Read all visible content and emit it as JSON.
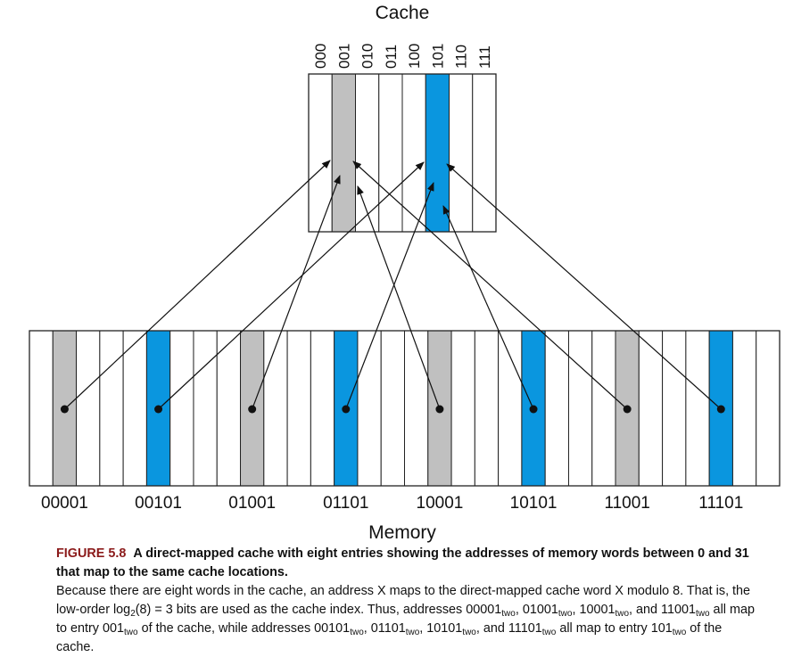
{
  "colors": {
    "gray": "#c0c0c0",
    "blue": "#0a96df",
    "line": "#111111",
    "border": "#222222"
  },
  "cache": {
    "title": "Cache",
    "indices": [
      "000",
      "001",
      "010",
      "011",
      "100",
      "101",
      "110",
      "111"
    ],
    "highlight": {
      "1": "gray",
      "5": "blue"
    }
  },
  "memory": {
    "title": "Memory",
    "cell_count": 32,
    "labels": [
      "00001",
      "00101",
      "01001",
      "01101",
      "10001",
      "10101",
      "11001",
      "11101"
    ],
    "highlight_addresses": [
      1,
      5,
      9,
      13,
      17,
      21,
      25,
      29
    ]
  },
  "mappings": [
    {
      "address": "00001",
      "entry": "001"
    },
    {
      "address": "00101",
      "entry": "101"
    },
    {
      "address": "01001",
      "entry": "001"
    },
    {
      "address": "01101",
      "entry": "101"
    },
    {
      "address": "10001",
      "entry": "001"
    },
    {
      "address": "10101",
      "entry": "101"
    },
    {
      "address": "11001",
      "entry": "001"
    },
    {
      "address": "11101",
      "entry": "101"
    }
  ],
  "caption": {
    "figure_label": "FIGURE 5.8",
    "heading": "A direct-mapped cache with eight entries showing the addresses of memory words between 0 and 31 that map to the same cache locations.",
    "body_1": "Because there are eight words in the cache, an address X maps to the direct-mapped cache word X modulo 8. That is, the low-order log",
    "body_sub2": "2",
    "body_2": "(8) = 3 bits are used as the cache index. Thus, addresses 00001",
    "two": "two",
    "sep_comma": ", ",
    "sep_and": ", and ",
    "addr_01001": "01001",
    "addr_10001": "10001",
    "addr_11001": "11001",
    "body_3": " all map to entry 001",
    "body_4": " of the cache, while addresses 00101",
    "addr_01101": "01101",
    "addr_10101": "10101",
    "addr_11101": "11101",
    "body_5": " all map to entry 101",
    "body_6": " of the cache."
  }
}
